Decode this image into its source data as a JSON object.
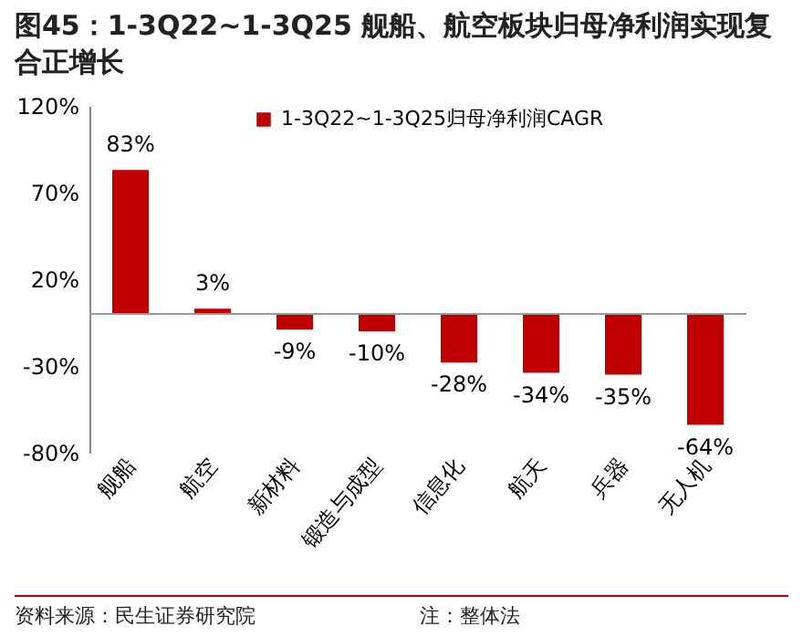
{
  "chart_data": {
    "type": "bar",
    "title": "图45：1-3Q22~1-3Q25 舰船、航空板块归母净利润实现复合正增长",
    "categories": [
      "舰船",
      "航空",
      "新材料",
      "锻造与成型",
      "信息化",
      "航天",
      "兵器",
      "无人机"
    ],
    "series": [
      {
        "name": "1-3Q22~1-3Q25归母净利润CAGR",
        "color": "#c00000",
        "values": [
          83,
          3,
          -9,
          -10,
          -28,
          -34,
          -35,
          -64
        ],
        "value_labels": [
          "83%",
          "3%",
          "-9%",
          "-10%",
          "-28%",
          "-34%",
          "-35%",
          "-64%"
        ]
      }
    ],
    "ylim": [
      -80,
      120
    ],
    "yticks": [
      {
        "value": 120,
        "label": "120%"
      },
      {
        "value": 70,
        "label": "70%"
      },
      {
        "value": 20,
        "label": "20%"
      },
      {
        "value": -30,
        "label": "-30%"
      },
      {
        "value": -80,
        "label": "-80%"
      }
    ],
    "grid": false,
    "legend": "top",
    "annotations": [
      "资料来源：民生证券研究院",
      "注：整体法"
    ]
  }
}
